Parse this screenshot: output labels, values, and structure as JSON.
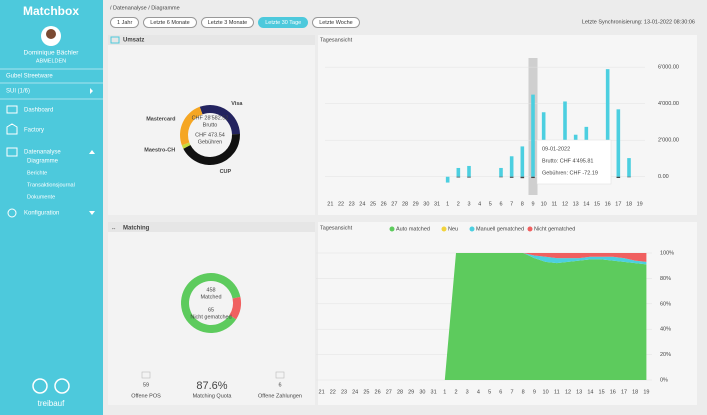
{
  "sidebar": {
    "brand": "Matchbox",
    "user": "Dominique Bächler",
    "logout": "ABMELDEN",
    "company": "Gubel Streetware",
    "account": "SUI (1/6)",
    "nav": [
      {
        "label": "Dashboard"
      },
      {
        "label": "Factory"
      },
      {
        "label": "Datenanalyse",
        "children": [
          "Diagramme",
          "Berichte",
          "Transaktionsjournal",
          "Dokumente"
        ]
      },
      {
        "label": "Konfiguration"
      }
    ],
    "footer": "treibauf"
  },
  "header": {
    "breadcrumb": "/ Datenanalyse / Diagramme",
    "ranges": [
      "1 Jahr",
      "Letzte 6 Monate",
      "Letzte 3 Monate",
      "Letzte 30 Tage",
      "Letzte Woche"
    ],
    "active_range": 3,
    "sync": "Letzte Synchronisierung: 13-01-2022 08:30:06"
  },
  "umsatz": {
    "title": "Umsatz",
    "donut": {
      "type": "pie",
      "categories": [
        "Visa",
        "CUP",
        "Maestro-CH",
        "Mastercard"
      ],
      "values": [
        30,
        43,
        2,
        25
      ],
      "colors": [
        "#23235f",
        "#111111",
        "#c8dc3c",
        "#f5a623"
      ],
      "center": [
        "CHF 28'582.52",
        "Brutto",
        "CHF 473.54",
        "Gebühren"
      ]
    },
    "chart": {
      "type": "bar",
      "title": "Tagesansicht",
      "categories": [
        "21",
        "22",
        "23",
        "24",
        "25",
        "26",
        "27",
        "28",
        "29",
        "30",
        "31",
        "1",
        "2",
        "3",
        "4",
        "5",
        "6",
        "7",
        "8",
        "9",
        "10",
        "11",
        "12",
        "13",
        "14",
        "15",
        "16",
        "17",
        "18",
        "19"
      ],
      "series": [
        {
          "color": "#4ccfe0",
          "values": [
            0,
            0,
            0,
            0,
            0,
            0,
            0,
            0,
            0,
            0,
            0,
            -320,
            480,
            590,
            0,
            0,
            480,
            1120,
            1660,
            4495.81,
            3530,
            1550,
            4120,
            2300,
            2730,
            1390,
            5890,
            3690,
            1020,
            0
          ]
        },
        {
          "color": "#444444",
          "values": [
            0,
            0,
            0,
            0,
            0,
            0,
            0,
            0,
            0,
            0,
            0,
            0,
            -40,
            -45,
            0,
            0,
            -30,
            -60,
            -80,
            -72.19,
            -65,
            -40,
            -75,
            -50,
            -55,
            -35,
            -110,
            -70,
            -30,
            0
          ]
        }
      ],
      "ylim": [
        -1000,
        6500
      ],
      "yticks": [
        {
          "value": 0,
          "label": "0.00"
        },
        {
          "value": 2000,
          "label": "2'000.00"
        },
        {
          "value": 4000,
          "label": "4'000.00"
        },
        {
          "value": 6000,
          "label": "6'000.00"
        }
      ],
      "grid": true,
      "tooltip": {
        "index": 19,
        "date": "09-01-2022",
        "lines": [
          "Brutto: CHF 4'495.81",
          "Gebühren: CHF -72.19"
        ]
      }
    }
  },
  "matching": {
    "title": "Matching",
    "donut": {
      "type": "pie",
      "categories": [
        "Matched",
        "Nicht gematched"
      ],
      "values": [
        458,
        65
      ],
      "colors": [
        "#5dcb5d",
        "#f06060"
      ]
    },
    "stats": [
      {
        "value": "59",
        "label": "Offene POS"
      },
      {
        "value": "87.6%",
        "label": "Matching Quota"
      },
      {
        "value": "6",
        "label": "Offene Zahlungen"
      }
    ],
    "chart": {
      "type": "area",
      "title": "Tagesansicht",
      "categories": [
        "21",
        "22",
        "23",
        "24",
        "25",
        "26",
        "27",
        "28",
        "29",
        "30",
        "31",
        "1",
        "2",
        "3",
        "4",
        "5",
        "6",
        "7",
        "8",
        "9",
        "10",
        "11",
        "12",
        "13",
        "14",
        "15",
        "16",
        "17",
        "18",
        "19"
      ],
      "series": [
        {
          "name": "Auto matched",
          "color": "#5dcb5d",
          "values": [
            0,
            0,
            0,
            0,
            0,
            0,
            0,
            0,
            0,
            0,
            0,
            0,
            100,
            100,
            100,
            100,
            100,
            100,
            100,
            96,
            93,
            92,
            93,
            94,
            95,
            95,
            94,
            93,
            92,
            91
          ]
        },
        {
          "name": "Neu",
          "color": "#f2d33c",
          "values": [
            0,
            0,
            0,
            0,
            0,
            0,
            0,
            0,
            0,
            0,
            0,
            0,
            0,
            0,
            0,
            0,
            0,
            0,
            0,
            0,
            0,
            0,
            0,
            0,
            0,
            0,
            0,
            0,
            0,
            0
          ]
        },
        {
          "name": "Manuell gematched",
          "color": "#4ccfe0",
          "values": [
            0,
            0,
            0,
            0,
            0,
            0,
            0,
            0,
            0,
            0,
            0,
            0,
            0,
            0,
            0,
            0,
            0,
            0,
            0,
            2,
            4,
            4,
            3,
            2,
            2,
            2,
            3,
            3,
            2,
            2
          ]
        },
        {
          "name": "Nicht gematched",
          "color": "#f06060",
          "values": [
            0,
            0,
            0,
            0,
            0,
            0,
            0,
            0,
            0,
            0,
            0,
            0,
            0,
            0,
            0,
            0,
            0,
            0,
            0,
            2,
            3,
            4,
            4,
            4,
            3,
            3,
            3,
            4,
            6,
            7
          ]
        }
      ],
      "ylim": [
        0,
        100
      ],
      "yticks": [
        {
          "value": 0,
          "label": "0%"
        },
        {
          "value": 20,
          "label": "20%"
        },
        {
          "value": 40,
          "label": "40%"
        },
        {
          "value": 60,
          "label": "60%"
        },
        {
          "value": 80,
          "label": "80%"
        },
        {
          "value": 100,
          "label": "100%"
        }
      ],
      "grid": true
    }
  }
}
